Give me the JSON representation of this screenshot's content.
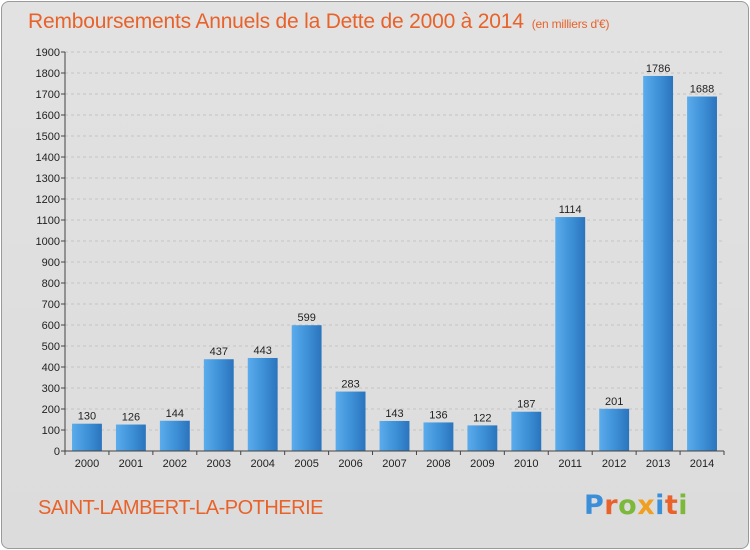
{
  "chart_data": {
    "type": "bar",
    "title": "Remboursements Annuels de la Dette de 2000 à 2014",
    "unit_note": "(en milliers d'€)",
    "categories": [
      "2000",
      "2001",
      "2002",
      "2003",
      "2004",
      "2005",
      "2006",
      "2007",
      "2008",
      "2009",
      "2010",
      "2011",
      "2012",
      "2013",
      "2014"
    ],
    "values": [
      130,
      126,
      144,
      437,
      443,
      599,
      283,
      143,
      136,
      122,
      187,
      1114,
      201,
      1786,
      1688
    ],
    "ylim": [
      0,
      1900
    ],
    "ytick_step": 100,
    "grid": true,
    "bar_color": "#3d8fd6",
    "xlabel": "",
    "ylabel": ""
  },
  "footer": {
    "commune": "SAINT-LAMBERT-LA-POTHERIE",
    "logo_letters": [
      {
        "ch": "P",
        "color": "#3a8fd8"
      },
      {
        "ch": "r",
        "color": "#e8622a"
      },
      {
        "ch": "o",
        "color": "#7cb83a"
      },
      {
        "ch": "x",
        "color": "#f0a020"
      },
      {
        "ch": "i",
        "color": "#3a8fd8"
      },
      {
        "ch": "t",
        "color": "#e8622a"
      },
      {
        "ch": "i",
        "color": "#7cb83a"
      }
    ]
  },
  "colors": {
    "title": "#e8622a",
    "background": "#dcdcdc"
  }
}
